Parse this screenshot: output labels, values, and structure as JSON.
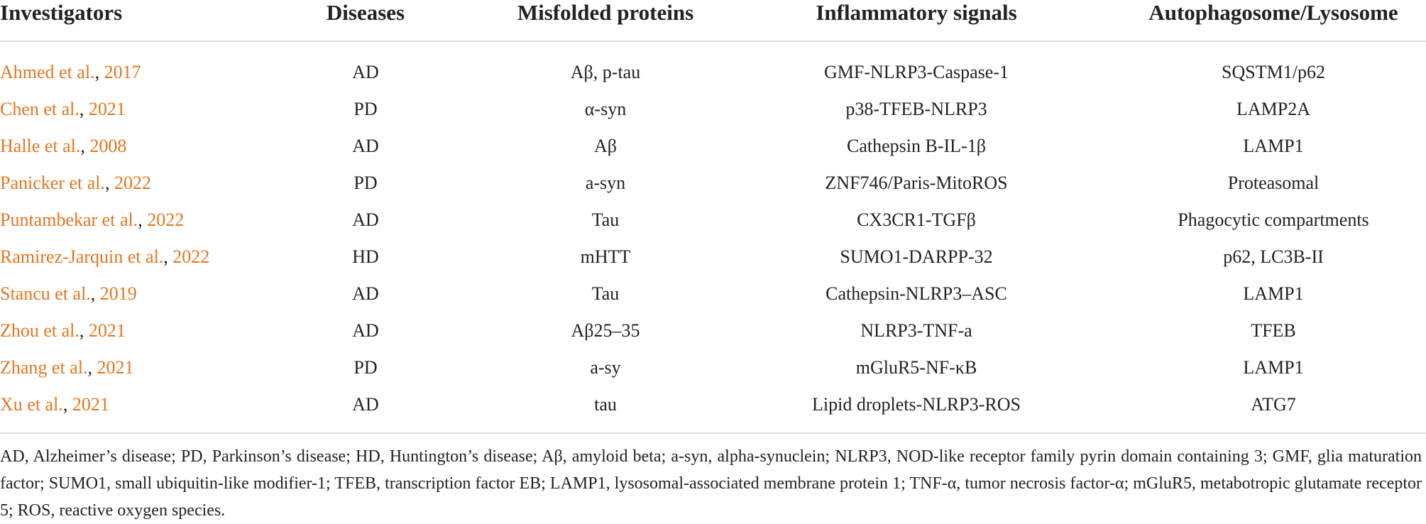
{
  "table": {
    "headers": [
      "Investigators",
      "Diseases",
      "Misfolded proteins",
      "Inflammatory signals",
      "Autophagosome/Lysosome"
    ],
    "rows": [
      [
        {
          "author": "Ahmed et al.",
          "sep": ",",
          "year": "2017"
        },
        "AD",
        "Aβ, p-tau",
        "GMF-NLRP3-Caspase-1",
        "SQSTM1/p62"
      ],
      [
        {
          "author": "Chen et al.",
          "sep": ",",
          "year": "2021"
        },
        "PD",
        "α-syn",
        "p38-TFEB-NLRP3",
        "LAMP2A"
      ],
      [
        {
          "author": "Halle et al.",
          "sep": ",",
          "year": "2008"
        },
        "AD",
        "Aβ",
        "Cathepsin B-IL-1β",
        "LAMP1"
      ],
      [
        {
          "author": "Panicker et al.",
          "sep": ",",
          "year": "2022"
        },
        "PD",
        "a-syn",
        "ZNF746/Paris-MitoROS",
        "Proteasomal"
      ],
      [
        {
          "author": "Puntambekar et al.",
          "sep": ",",
          "year": "2022"
        },
        "AD",
        "Tau",
        "CX3CR1-TGFβ",
        "Phagocytic compartments"
      ],
      [
        {
          "author": "Ramirez-Jarquin et al.",
          "sep": ",",
          "year": "2022"
        },
        "HD",
        "mHTT",
        "SUMO1-DARPP-32",
        "p62, LC3B-II"
      ],
      [
        {
          "author": "Stancu et al.",
          "sep": ",",
          "year": "2019"
        },
        "AD",
        "Tau",
        "Cathepsin-NLRP3–ASC",
        "LAMP1"
      ],
      [
        {
          "author": "Zhou et al.",
          "sep": ",",
          "year": "2021"
        },
        "AD",
        "Aβ25–35",
        "NLRP3-TNF-a",
        "TFEB"
      ],
      [
        {
          "author": "Zhang et al.",
          "sep": ",",
          "year": "2021"
        },
        "PD",
        "a-sy",
        "mGluR5-NF-κB",
        "LAMP1"
      ],
      [
        {
          "author": "Xu et al.",
          "sep": ",",
          "year": "2021"
        },
        "AD",
        "tau",
        "Lipid droplets-NLRP3-ROS",
        "ATG7"
      ]
    ]
  },
  "footnote": "AD, Alzheimer’s disease; PD, Parkinson’s disease; HD, Huntington’s disease; Aβ, amyloid beta; a-syn, alpha-synuclein; NLRP3, NOD-like receptor family pyrin domain containing 3; GMF, glia maturation factor; SUMO1, small ubiquitin-like modifier-1; TFEB, transcription factor EB; LAMP1, lysosomal-associated membrane protein 1; TNF-α, tumor necrosis factor-α; mGluR5, metabotropic glutamate receptor 5; ROS, reactive oxygen species."
}
